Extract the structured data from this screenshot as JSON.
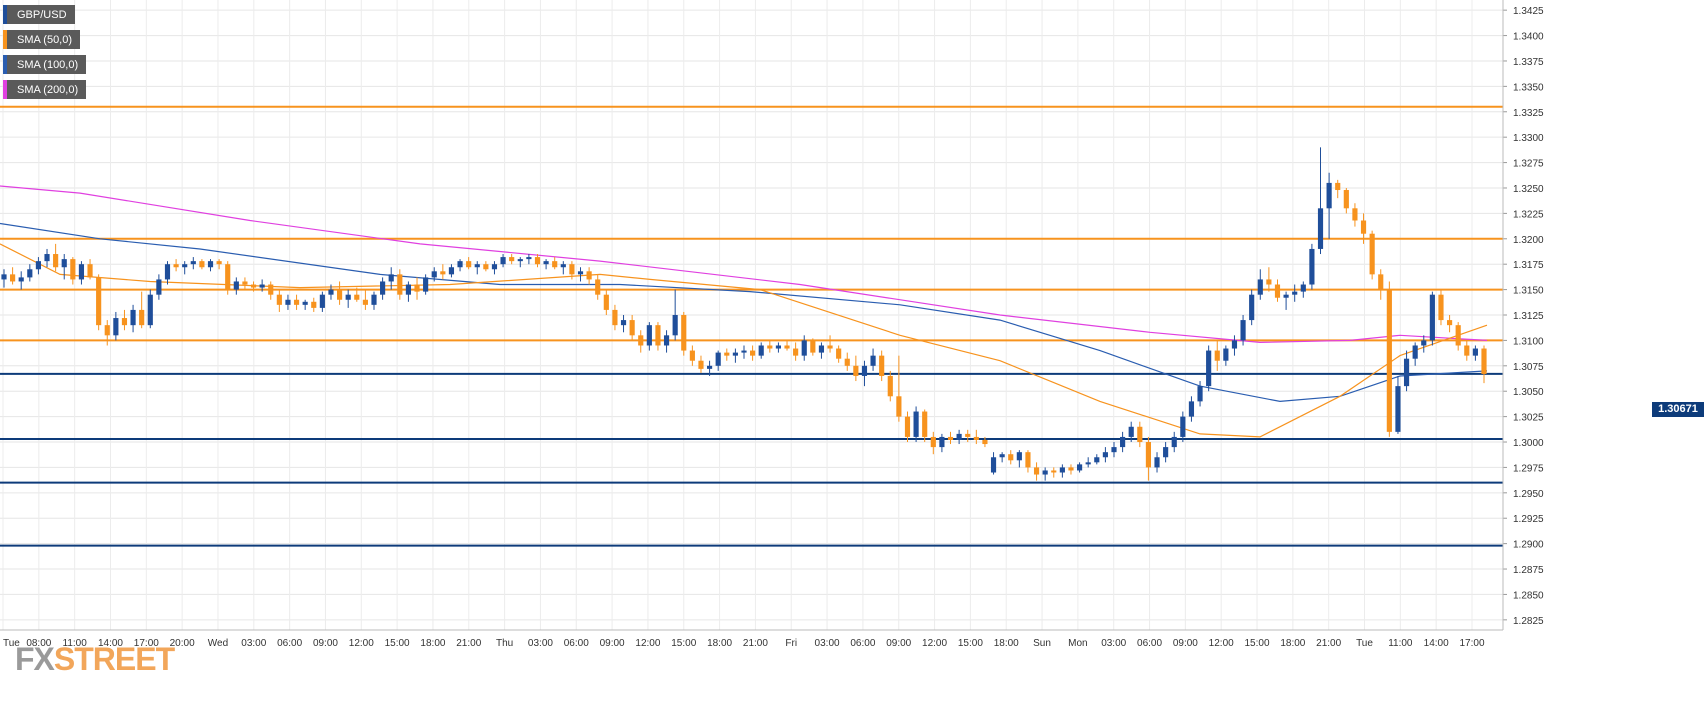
{
  "legend": [
    {
      "label": "GBP/USD",
      "color": "#1f4e9a"
    },
    {
      "label": "SMA (50,0)",
      "color": "#f7931e"
    },
    {
      "label": "SMA (100,0)",
      "color": "#2a5db0"
    },
    {
      "label": "SMA (200,0)",
      "color": "#e040e0"
    }
  ],
  "logo": {
    "fx": "FX",
    "street": "STREET"
  },
  "last_price_label": "1.30671",
  "colors": {
    "up": "#1f4e9a",
    "down": "#f7931e",
    "sma50": "#f7931e",
    "sma100": "#2a5db0",
    "sma200": "#e040e0",
    "resistance": "#f7931e",
    "support": "#0d3b7a"
  },
  "chart_data": {
    "type": "candlestick",
    "symbol": "GBP/USD",
    "ylim": [
      1.2815,
      1.3435
    ],
    "y_ticks": [
      "1.3425",
      "1.3400",
      "1.3375",
      "1.3350",
      "1.3325",
      "1.3300",
      "1.3275",
      "1.3250",
      "1.3225",
      "1.3200",
      "1.3175",
      "1.3150",
      "1.3125",
      "1.3100",
      "1.3075",
      "1.3050",
      "1.3025",
      "1.3000",
      "1.2975",
      "1.2950",
      "1.2925",
      "1.2900",
      "1.2875",
      "1.2850",
      "1.2825"
    ],
    "x_ticks": [
      "Tue",
      "08:00",
      "11:00",
      "14:00",
      "17:00",
      "20:00",
      "Wed",
      "03:00",
      "06:00",
      "09:00",
      "12:00",
      "15:00",
      "18:00",
      "21:00",
      "Thu",
      "03:00",
      "06:00",
      "09:00",
      "12:00",
      "15:00",
      "18:00",
      "21:00",
      "Fri",
      "03:00",
      "06:00",
      "09:00",
      "12:00",
      "15:00",
      "18:00",
      "Sun",
      "Mon",
      "03:00",
      "06:00",
      "09:00",
      "12:00",
      "15:00",
      "18:00",
      "21:00",
      "Tue",
      "11:00",
      "14:00",
      "17:00"
    ],
    "grid": true,
    "horizontal_levels": [
      {
        "value": 1.333,
        "role": "resistance"
      },
      {
        "value": 1.32,
        "role": "resistance"
      },
      {
        "value": 1.315,
        "role": "resistance"
      },
      {
        "value": 1.31,
        "role": "resistance"
      },
      {
        "value": 1.3067,
        "role": "support"
      },
      {
        "value": 1.3003,
        "role": "support"
      },
      {
        "value": 1.296,
        "role": "support"
      },
      {
        "value": 1.2898,
        "role": "support"
      }
    ],
    "last_price": 1.30671,
    "candles": [
      [
        1.316,
        1.317,
        1.3152,
        1.3165
      ],
      [
        1.3165,
        1.3172,
        1.3155,
        1.3158
      ],
      [
        1.3158,
        1.3168,
        1.315,
        1.3162
      ],
      [
        1.3162,
        1.3175,
        1.3158,
        1.317
      ],
      [
        1.317,
        1.3182,
        1.3165,
        1.3178
      ],
      [
        1.3178,
        1.319,
        1.3172,
        1.3185
      ],
      [
        1.3185,
        1.3195,
        1.3168,
        1.3172
      ],
      [
        1.3172,
        1.3185,
        1.316,
        1.318
      ],
      [
        1.318,
        1.3182,
        1.3155,
        1.316
      ],
      [
        1.316,
        1.3178,
        1.3155,
        1.3175
      ],
      [
        1.3175,
        1.318,
        1.316,
        1.3162
      ],
      [
        1.3162,
        1.3165,
        1.311,
        1.3115
      ],
      [
        1.3115,
        1.312,
        1.3095,
        1.3105
      ],
      [
        1.3105,
        1.3128,
        1.31,
        1.3122
      ],
      [
        1.3122,
        1.313,
        1.311,
        1.3115
      ],
      [
        1.3115,
        1.3135,
        1.3108,
        1.313
      ],
      [
        1.313,
        1.3148,
        1.3112,
        1.3115
      ],
      [
        1.3115,
        1.315,
        1.3112,
        1.3145
      ],
      [
        1.3145,
        1.3165,
        1.314,
        1.316
      ],
      [
        1.316,
        1.3178,
        1.3155,
        1.3175
      ],
      [
        1.3175,
        1.318,
        1.3168,
        1.3172
      ],
      [
        1.3172,
        1.3178,
        1.3165,
        1.3175
      ],
      [
        1.3175,
        1.3182,
        1.317,
        1.3178
      ],
      [
        1.3178,
        1.318,
        1.317,
        1.3172
      ],
      [
        1.3172,
        1.318,
        1.3168,
        1.3178
      ],
      [
        1.3178,
        1.318,
        1.317,
        1.3175
      ],
      [
        1.3175,
        1.3178,
        1.3145,
        1.315
      ],
      [
        1.315,
        1.3162,
        1.3145,
        1.3158
      ],
      [
        1.3158,
        1.3162,
        1.315,
        1.3155
      ],
      [
        1.3155,
        1.3158,
        1.3148,
        1.3152
      ],
      [
        1.3152,
        1.316,
        1.3148,
        1.3155
      ],
      [
        1.3155,
        1.3158,
        1.314,
        1.3145
      ],
      [
        1.3145,
        1.315,
        1.3128,
        1.3135
      ],
      [
        1.3135,
        1.3145,
        1.313,
        1.314
      ],
      [
        1.314,
        1.3145,
        1.313,
        1.3135
      ],
      [
        1.3135,
        1.314,
        1.313,
        1.3138
      ],
      [
        1.3138,
        1.3142,
        1.3128,
        1.3132
      ],
      [
        1.3132,
        1.3148,
        1.3128,
        1.3145
      ],
      [
        1.3145,
        1.3155,
        1.314,
        1.315
      ],
      [
        1.315,
        1.3158,
        1.3135,
        1.314
      ],
      [
        1.314,
        1.315,
        1.3132,
        1.3145
      ],
      [
        1.3145,
        1.3152,
        1.3138,
        1.314
      ],
      [
        1.314,
        1.315,
        1.313,
        1.3135
      ],
      [
        1.3135,
        1.3148,
        1.313,
        1.3145
      ],
      [
        1.3145,
        1.3162,
        1.314,
        1.3158
      ],
      [
        1.3158,
        1.3172,
        1.315,
        1.3165
      ],
      [
        1.3165,
        1.317,
        1.314,
        1.3145
      ],
      [
        1.3145,
        1.3158,
        1.3138,
        1.3155
      ],
      [
        1.3155,
        1.3162,
        1.314,
        1.3148
      ],
      [
        1.3148,
        1.3165,
        1.3145,
        1.3162
      ],
      [
        1.3162,
        1.3172,
        1.3158,
        1.3168
      ],
      [
        1.3168,
        1.3175,
        1.316,
        1.3165
      ],
      [
        1.3165,
        1.3175,
        1.3162,
        1.3172
      ],
      [
        1.3172,
        1.318,
        1.3168,
        1.3178
      ],
      [
        1.3178,
        1.3182,
        1.317,
        1.3172
      ],
      [
        1.3172,
        1.3178,
        1.3165,
        1.3175
      ],
      [
        1.3175,
        1.3178,
        1.3168,
        1.317
      ],
      [
        1.317,
        1.3178,
        1.3165,
        1.3175
      ],
      [
        1.3175,
        1.3185,
        1.3172,
        1.3182
      ],
      [
        1.3182,
        1.3185,
        1.3175,
        1.3178
      ],
      [
        1.3178,
        1.3182,
        1.3172,
        1.318
      ],
      [
        1.318,
        1.3185,
        1.3175,
        1.3182
      ],
      [
        1.3182,
        1.3185,
        1.3172,
        1.3175
      ],
      [
        1.3175,
        1.318,
        1.317,
        1.3178
      ],
      [
        1.3178,
        1.3182,
        1.317,
        1.3172
      ],
      [
        1.3172,
        1.3178,
        1.3165,
        1.3175
      ],
      [
        1.3175,
        1.3178,
        1.316,
        1.3165
      ],
      [
        1.3165,
        1.3172,
        1.3158,
        1.3168
      ],
      [
        1.3168,
        1.3172,
        1.3155,
        1.316
      ],
      [
        1.316,
        1.3165,
        1.314,
        1.3145
      ],
      [
        1.3145,
        1.315,
        1.3125,
        1.313
      ],
      [
        1.313,
        1.3135,
        1.311,
        1.3115
      ],
      [
        1.3115,
        1.3125,
        1.3108,
        1.312
      ],
      [
        1.312,
        1.3125,
        1.31,
        1.3105
      ],
      [
        1.3105,
        1.311,
        1.3088,
        1.3095
      ],
      [
        1.3095,
        1.3118,
        1.309,
        1.3115
      ],
      [
        1.3115,
        1.3118,
        1.309,
        1.3095
      ],
      [
        1.3095,
        1.311,
        1.3088,
        1.3105
      ],
      [
        1.3105,
        1.315,
        1.31,
        1.3125
      ],
      [
        1.3125,
        1.3128,
        1.3085,
        1.309
      ],
      [
        1.309,
        1.3095,
        1.3075,
        1.308
      ],
      [
        1.308,
        1.3085,
        1.3068,
        1.3072
      ],
      [
        1.3072,
        1.308,
        1.3065,
        1.3075
      ],
      [
        1.3075,
        1.309,
        1.307,
        1.3088
      ],
      [
        1.3088,
        1.3092,
        1.308,
        1.3085
      ],
      [
        1.3085,
        1.3092,
        1.3078,
        1.3088
      ],
      [
        1.3088,
        1.3095,
        1.3082,
        1.309
      ],
      [
        1.309,
        1.3095,
        1.308,
        1.3085
      ],
      [
        1.3085,
        1.3098,
        1.3082,
        1.3095
      ],
      [
        1.3095,
        1.31,
        1.3088,
        1.3092
      ],
      [
        1.3092,
        1.3098,
        1.3088,
        1.3095
      ],
      [
        1.3095,
        1.31,
        1.309,
        1.3092
      ],
      [
        1.3092,
        1.3098,
        1.308,
        1.3085
      ],
      [
        1.3085,
        1.3105,
        1.308,
        1.31
      ],
      [
        1.31,
        1.3102,
        1.3085,
        1.3088
      ],
      [
        1.3088,
        1.3098,
        1.3082,
        1.3095
      ],
      [
        1.3095,
        1.3105,
        1.3088,
        1.3092
      ],
      [
        1.3092,
        1.3095,
        1.3078,
        1.3082
      ],
      [
        1.3082,
        1.3088,
        1.307,
        1.3075
      ],
      [
        1.3075,
        1.3085,
        1.306,
        1.3065
      ],
      [
        1.3065,
        1.308,
        1.3055,
        1.3075
      ],
      [
        1.3075,
        1.3092,
        1.307,
        1.3085
      ],
      [
        1.3085,
        1.309,
        1.306,
        1.3065
      ],
      [
        1.3065,
        1.307,
        1.304,
        1.3045
      ],
      [
        1.3045,
        1.3085,
        1.302,
        1.3025
      ],
      [
        1.3025,
        1.303,
        1.3,
        1.3005
      ],
      [
        1.3005,
        1.3035,
        1.3,
        1.303
      ],
      [
        1.303,
        1.3032,
        1.3,
        1.3005
      ],
      [
        1.3005,
        1.301,
        1.2988,
        1.2995
      ],
      [
        1.2995,
        1.3008,
        1.299,
        1.3005
      ],
      [
        1.3005,
        1.301,
        1.2998,
        1.3002
      ],
      [
        1.3002,
        1.3012,
        1.2998,
        1.3008
      ],
      [
        1.3008,
        1.3012,
        1.3,
        1.3005
      ],
      [
        1.3005,
        1.3012,
        1.2998,
        1.3002
      ],
      [
        1.3002,
        1.3005,
        1.2995,
        1.2998
      ],
      [
        1.297,
        1.299,
        1.2968,
        1.2985
      ],
      [
        1.2985,
        1.299,
        1.298,
        1.2988
      ],
      [
        1.2988,
        1.2992,
        1.2978,
        1.2982
      ],
      [
        1.2982,
        1.2992,
        1.2975,
        1.299
      ],
      [
        1.299,
        1.2992,
        1.297,
        1.2975
      ],
      [
        1.2975,
        1.298,
        1.2962,
        1.2968
      ],
      [
        1.2968,
        1.2975,
        1.2962,
        1.2972
      ],
      [
        1.2972,
        1.2975,
        1.2965,
        1.297
      ],
      [
        1.297,
        1.2978,
        1.2965,
        1.2975
      ],
      [
        1.2975,
        1.2978,
        1.2968,
        1.2972
      ],
      [
        1.2972,
        1.298,
        1.297,
        1.2978
      ],
      [
        1.2978,
        1.2985,
        1.2975,
        1.298
      ],
      [
        1.298,
        1.2988,
        1.2978,
        1.2985
      ],
      [
        1.2985,
        1.2995,
        1.298,
        1.299
      ],
      [
        1.299,
        1.3,
        1.2985,
        1.2995
      ],
      [
        1.2995,
        1.301,
        1.299,
        1.3005
      ],
      [
        1.3005,
        1.302,
        1.3,
        1.3015
      ],
      [
        1.3015,
        1.302,
        1.2995,
        1.3
      ],
      [
        1.3,
        1.3005,
        1.2962,
        1.2975
      ],
      [
        1.2975,
        1.299,
        1.297,
        1.2985
      ],
      [
        1.2985,
        1.3,
        1.298,
        1.2995
      ],
      [
        1.2995,
        1.301,
        1.299,
        1.3005
      ],
      [
        1.3005,
        1.303,
        1.3,
        1.3025
      ],
      [
        1.3025,
        1.3045,
        1.302,
        1.304
      ],
      [
        1.304,
        1.306,
        1.3035,
        1.3055
      ],
      [
        1.3055,
        1.3095,
        1.305,
        1.309
      ],
      [
        1.309,
        1.31,
        1.307,
        1.308
      ],
      [
        1.308,
        1.3095,
        1.3075,
        1.3092
      ],
      [
        1.3092,
        1.3105,
        1.3085,
        1.31
      ],
      [
        1.31,
        1.3125,
        1.3095,
        1.312
      ],
      [
        1.312,
        1.315,
        1.3115,
        1.3145
      ],
      [
        1.3145,
        1.317,
        1.314,
        1.316
      ],
      [
        1.316,
        1.3172,
        1.3148,
        1.3155
      ],
      [
        1.3155,
        1.316,
        1.3138,
        1.3142
      ],
      [
        1.3142,
        1.3148,
        1.313,
        1.3145
      ],
      [
        1.3145,
        1.3155,
        1.3138,
        1.3148
      ],
      [
        1.3148,
        1.3158,
        1.3142,
        1.3155
      ],
      [
        1.3155,
        1.3195,
        1.315,
        1.319
      ],
      [
        1.319,
        1.329,
        1.3185,
        1.323
      ],
      [
        1.323,
        1.3265,
        1.32,
        1.3255
      ],
      [
        1.3255,
        1.3258,
        1.324,
        1.3248
      ],
      [
        1.3248,
        1.325,
        1.3225,
        1.323
      ],
      [
        1.323,
        1.3235,
        1.3212,
        1.3218
      ],
      [
        1.3218,
        1.3225,
        1.3195,
        1.3205
      ],
      [
        1.3205,
        1.3208,
        1.316,
        1.3165
      ],
      [
        1.3165,
        1.317,
        1.314,
        1.315
      ],
      [
        1.315,
        1.3158,
        1.3005,
        1.301
      ],
      [
        1.301,
        1.3065,
        1.3008,
        1.3055
      ],
      [
        1.3055,
        1.309,
        1.305,
        1.3082
      ],
      [
        1.3082,
        1.3098,
        1.3075,
        1.3095
      ],
      [
        1.3095,
        1.3105,
        1.3088,
        1.31
      ],
      [
        1.31,
        1.3148,
        1.3095,
        1.3145
      ],
      [
        1.3145,
        1.315,
        1.3115,
        1.312
      ],
      [
        1.312,
        1.3125,
        1.3108,
        1.3115
      ],
      [
        1.3115,
        1.3118,
        1.309,
        1.3095
      ],
      [
        1.3095,
        1.31,
        1.308,
        1.3085
      ],
      [
        1.3085,
        1.3095,
        1.308,
        1.3092
      ],
      [
        1.3092,
        1.3095,
        1.3058,
        1.3067
      ]
    ],
    "sma50": [
      [
        0,
        1.3195
      ],
      [
        60,
        1.3165
      ],
      [
        150,
        1.3158
      ],
      [
        300,
        1.3152
      ],
      [
        450,
        1.3155
      ],
      [
        600,
        1.3165
      ],
      [
        650,
        1.316
      ],
      [
        760,
        1.315
      ],
      [
        900,
        1.3105
      ],
      [
        1000,
        1.308
      ],
      [
        1100,
        1.304
      ],
      [
        1200,
        1.3008
      ],
      [
        1260,
        1.3005
      ],
      [
        1340,
        1.3045
      ],
      [
        1400,
        1.3085
      ],
      [
        1487,
        1.3115
      ]
    ],
    "sma100": [
      [
        0,
        1.3215
      ],
      [
        100,
        1.32
      ],
      [
        200,
        1.319
      ],
      [
        380,
        1.3165
      ],
      [
        500,
        1.3155
      ],
      [
        620,
        1.3155
      ],
      [
        750,
        1.3148
      ],
      [
        900,
        1.3135
      ],
      [
        1000,
        1.312
      ],
      [
        1100,
        1.309
      ],
      [
        1200,
        1.3055
      ],
      [
        1280,
        1.304
      ],
      [
        1340,
        1.3045
      ],
      [
        1400,
        1.3065
      ],
      [
        1487,
        1.307
      ]
    ],
    "sma200": [
      [
        0,
        1.3252
      ],
      [
        80,
        1.3245
      ],
      [
        250,
        1.3218
      ],
      [
        420,
        1.3195
      ],
      [
        600,
        1.3178
      ],
      [
        800,
        1.3155
      ],
      [
        1000,
        1.3125
      ],
      [
        1150,
        1.3108
      ],
      [
        1260,
        1.3098
      ],
      [
        1350,
        1.31
      ],
      [
        1400,
        1.3105
      ],
      [
        1487,
        1.31
      ]
    ]
  }
}
